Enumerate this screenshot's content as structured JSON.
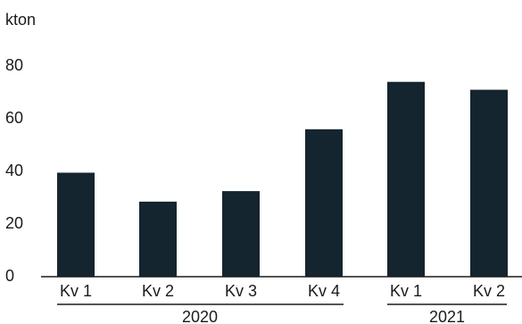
{
  "chart_data": {
    "type": "bar",
    "unit_label": "kton",
    "categories": [
      "Kv 1",
      "Kv 2",
      "Kv 3",
      "Kv 4",
      "Kv 1",
      "Kv 2"
    ],
    "groups": [
      {
        "label": "2020",
        "categories": [
          "Kv 1",
          "Kv 2",
          "Kv 3",
          "Kv 4"
        ]
      },
      {
        "label": "2021",
        "categories": [
          "Kv 1",
          "Kv 2"
        ]
      }
    ],
    "values": [
      39.5,
      28.5,
      32.5,
      56,
      74,
      71
    ],
    "yticks": [
      "0",
      "20",
      "40",
      "60",
      "80"
    ],
    "ylim": [
      0,
      80
    ],
    "grid": false,
    "bar_color": "#14252f"
  }
}
